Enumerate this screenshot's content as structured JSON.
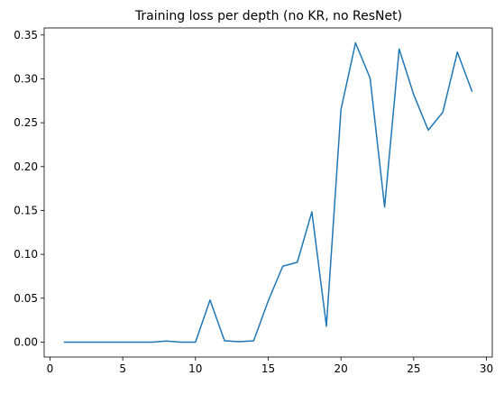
{
  "chart_data": {
    "type": "line",
    "title": "Training loss per depth (no KR, no ResNet)",
    "xlabel": "",
    "ylabel": "",
    "xlim": [
      -0.4,
      30.4
    ],
    "ylim": [
      -0.017,
      0.358
    ],
    "x_ticks": [
      0,
      5,
      10,
      15,
      20,
      25,
      30
    ],
    "x_tick_labels": [
      "0",
      "5",
      "10",
      "15",
      "20",
      "25",
      "30"
    ],
    "y_ticks": [
      0.0,
      0.05,
      0.1,
      0.15,
      0.2,
      0.25,
      0.3,
      0.35
    ],
    "y_tick_labels": [
      "0.00",
      "0.05",
      "0.10",
      "0.15",
      "0.20",
      "0.25",
      "0.30",
      "0.35"
    ],
    "grid": false,
    "line_color": "#1f77b4",
    "series": [
      {
        "x": [
          1,
          2,
          3,
          4,
          5,
          6,
          7,
          8,
          9,
          10,
          11,
          12,
          13,
          14,
          15,
          16,
          17,
          18,
          19,
          20,
          21,
          22,
          23,
          24,
          25,
          26,
          27,
          28,
          29
        ],
        "values": [
          0.0,
          0.0,
          0.0,
          0.0,
          0.0,
          0.0,
          0.0,
          0.0012,
          0.0,
          0.0,
          0.048,
          0.0015,
          0.0005,
          0.0015,
          0.047,
          0.0865,
          0.091,
          0.1485,
          0.018,
          0.265,
          0.341,
          0.301,
          0.154,
          0.334,
          0.282,
          0.2415,
          0.262,
          0.3305,
          0.286
        ]
      }
    ]
  }
}
